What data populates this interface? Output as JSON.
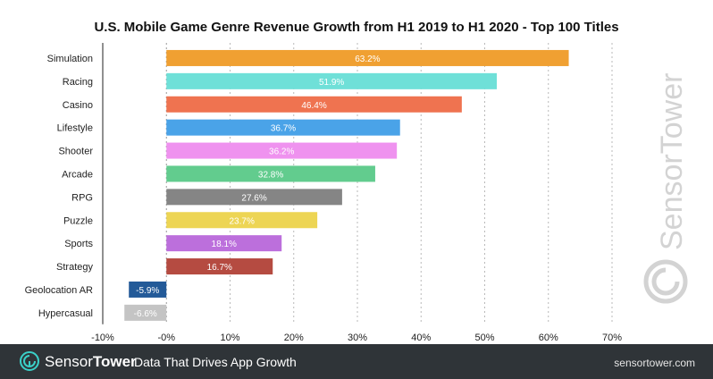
{
  "chart_data": {
    "type": "bar",
    "orientation": "horizontal",
    "title": "U.S. Mobile Game Genre Revenue Growth from H1 2019 to H1 2020 - Top 100 Titles",
    "categories": [
      "Simulation",
      "Racing",
      "Casino",
      "Lifestyle",
      "Shooter",
      "Arcade",
      "RPG",
      "Puzzle",
      "Sports",
      "Strategy",
      "Geolocation AR",
      "Hypercasual"
    ],
    "values": [
      63.2,
      51.9,
      46.4,
      36.7,
      36.2,
      32.8,
      27.6,
      23.7,
      18.1,
      16.7,
      -5.9,
      -6.6
    ],
    "value_labels": [
      "63.2%",
      "51.9%",
      "46.4%",
      "36.7%",
      "36.2%",
      "32.8%",
      "27.6%",
      "23.7%",
      "18.1%",
      "16.7%",
      "-5.9%",
      "-6.6%"
    ],
    "colors": [
      "#f0a032",
      "#6fe0d8",
      "#ef7350",
      "#4aa3e8",
      "#ef92ef",
      "#62cc8e",
      "#858585",
      "#edd554",
      "#bc6fdc",
      "#b54b41",
      "#235a98",
      "#c4c4c4"
    ],
    "xlim": [
      -10,
      70
    ],
    "xticks": [
      -10,
      0,
      10,
      20,
      30,
      40,
      50,
      60,
      70
    ],
    "xtick_labels": [
      "-10%",
      "-0%",
      "10%",
      "20%",
      "30%",
      "40%",
      "50%",
      "60%",
      "70%"
    ],
    "xlabel": "",
    "ylabel": "",
    "grid": "vertical dotted"
  },
  "watermark": {
    "text": "SensorTower"
  },
  "footer": {
    "brand_light": "Sensor",
    "brand_bold": "Tower",
    "tagline": "Data That Drives App Growth",
    "url": "sensortower.com"
  }
}
